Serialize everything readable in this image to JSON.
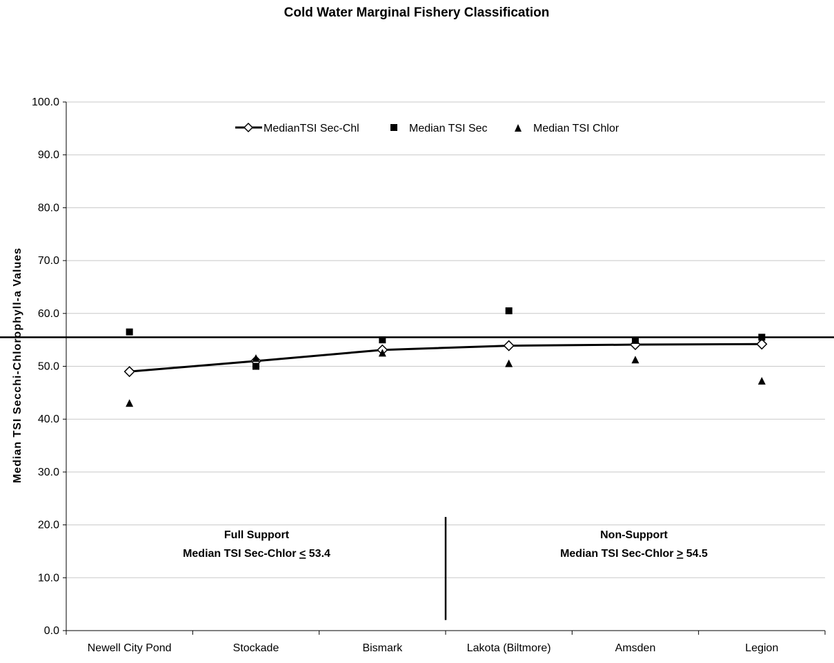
{
  "chart_data": {
    "type": "line",
    "title": "Cold Water Marginal Fishery Classification",
    "xlabel": "",
    "ylabel": "Median TSI Secchi-Chlorophyll-a Values",
    "ylim": [
      0,
      100
    ],
    "yticks": [
      "0.0",
      "10.0",
      "20.0",
      "30.0",
      "40.0",
      "50.0",
      "60.0",
      "70.0",
      "80.0",
      "90.0",
      "100.0"
    ],
    "grid": true,
    "legend_position": "top",
    "categories": [
      "Newell City Pond",
      "Stockade",
      "Bismark",
      "Lakota (Biltmore)",
      "Amsden",
      "Legion"
    ],
    "series": [
      {
        "name": "MedianTSI Sec-Chl",
        "style": "line-diamond",
        "color": "#000000",
        "values": [
          49.0,
          51.0,
          53.1,
          53.9,
          54.1,
          54.2
        ]
      },
      {
        "name": "Median TSI Sec",
        "style": "square",
        "color": "#000000",
        "values": [
          56.5,
          50.0,
          55.0,
          60.5,
          54.9,
          55.5
        ]
      },
      {
        "name": "Median TSI Chlor",
        "style": "triangle",
        "color": "#000000",
        "values": [
          43.0,
          51.5,
          52.5,
          50.5,
          51.2,
          47.2
        ]
      }
    ],
    "reference_line": 55.5,
    "divider_after_category": 3,
    "annotations": {
      "left": {
        "line1": "Full Support",
        "line2_prefix": "Median TSI Sec-Chlor ",
        "line2_symbol": "<",
        "line2_value": " 53.4"
      },
      "right": {
        "line1": "Non-Support",
        "line2_prefix": "Median TSI Sec-Chlor ",
        "line2_symbol": ">",
        "line2_value": " 54.5"
      }
    }
  }
}
